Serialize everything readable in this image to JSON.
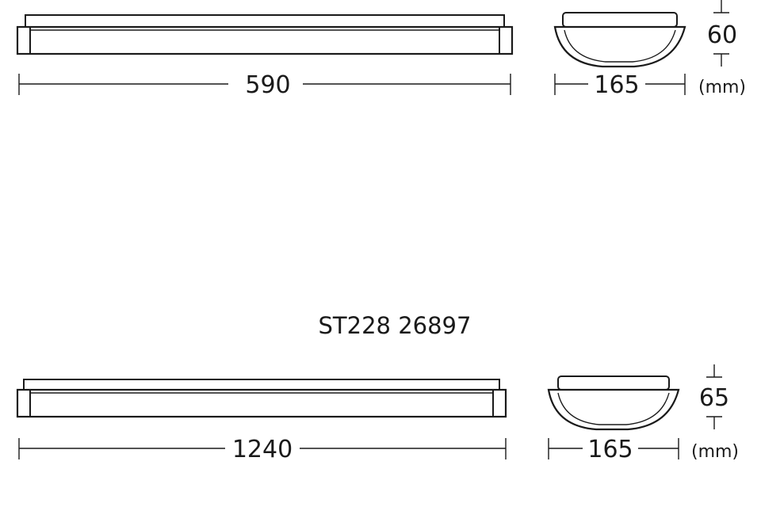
{
  "model": {
    "label": "ST228 26897"
  },
  "units": {
    "label": "(mm)"
  },
  "top_fixture": {
    "length_label": "590",
    "width_label": "165",
    "height_label": "60",
    "units_label": "(mm)"
  },
  "bottom_fixture": {
    "length_label": "1240",
    "width_label": "165",
    "height_label": "65",
    "units_label": "(mm)"
  }
}
